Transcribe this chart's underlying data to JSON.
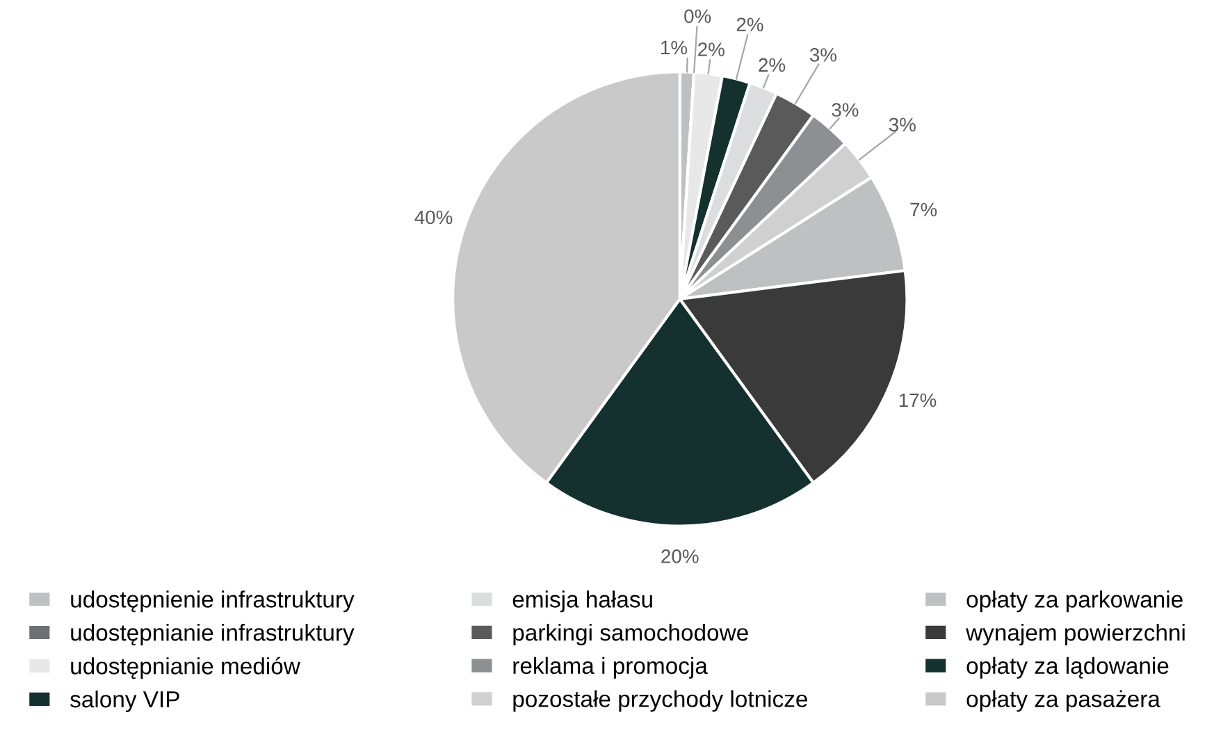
{
  "chart_data": {
    "type": "pie",
    "categories": [
      "udostępnienie infrastruktury",
      "udostępnianie infrastruktury",
      "udostępnianie mediów",
      "salony VIP",
      "emisja hałasu",
      "parkingi samochodowe",
      "reklama i promocja",
      "pozostałe przychody lotnicze",
      "opłaty za parkowanie",
      "wynajem powierzchni",
      "opłaty za lądowanie",
      "opłaty za pasażera"
    ],
    "values": [
      1,
      0,
      2,
      2,
      2,
      3,
      3,
      3,
      7,
      17,
      20,
      40
    ],
    "value_labels": [
      "1%",
      "0%",
      "2%",
      "2%",
      "2%",
      "3%",
      "3%",
      "3%",
      "7%",
      "17%",
      "20%",
      "40%"
    ],
    "colors": [
      "#bfc0c2",
      "#6f7074",
      "#e8e8e8",
      "#14312f",
      "#dcdddf",
      "#5a5a5a",
      "#8e8f93",
      "#d0d0d0",
      "#bfc0c2",
      "#3a3a3a",
      "#14312f",
      "#c9c9c9"
    ],
    "legend": "bottom"
  }
}
